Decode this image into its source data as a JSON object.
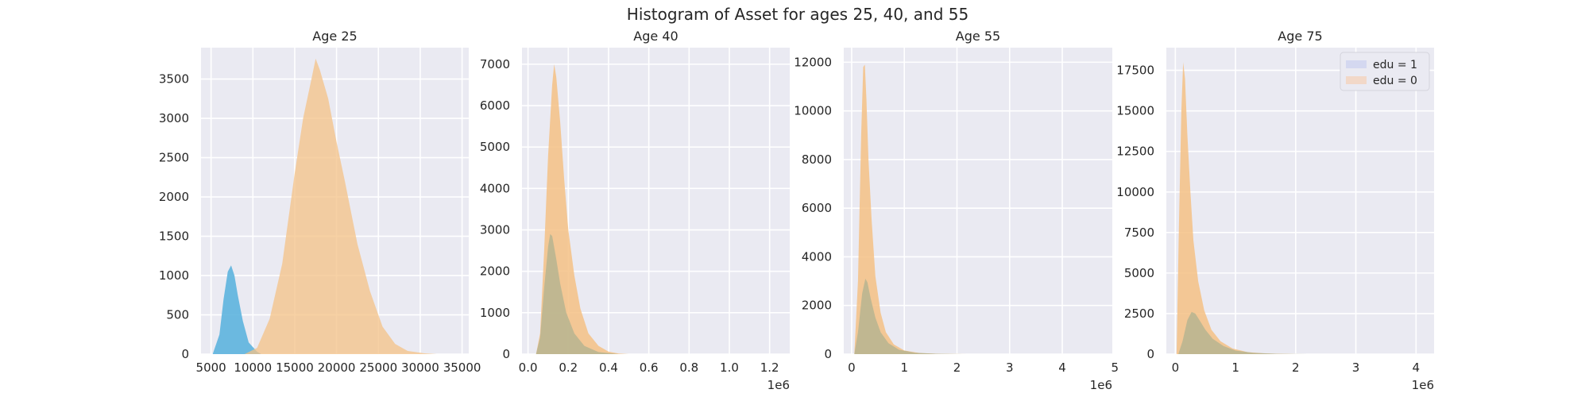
{
  "figure_title": "Histogram of Asset for ages 25, 40, and 55",
  "chart_data": [
    {
      "type": "histogram",
      "title": "Age 25",
      "xlim": [
        3800,
        35800
      ],
      "ylim": [
        0,
        3900
      ],
      "xticks": [
        5000,
        10000,
        15000,
        20000,
        25000,
        30000,
        35000
      ],
      "xtick_labels": [
        "5000",
        "10000",
        "15000",
        "20000",
        "25000",
        "30000",
        "35000"
      ],
      "yticks": [
        0,
        500,
        1000,
        1500,
        2000,
        2500,
        3000,
        3500
      ],
      "ytick_labels": [
        "0",
        "500",
        "1000",
        "1500",
        "2000",
        "2500",
        "3000",
        "3500"
      ],
      "offset_text": "",
      "legend": null,
      "series": [
        {
          "color": "#5db4de",
          "alpha": 0.9,
          "x": [
            5200,
            6000,
            6500,
            7000,
            7400,
            7800,
            8200,
            8800,
            9500,
            10500,
            11000
          ],
          "y": [
            0,
            250,
            700,
            1050,
            1130,
            1000,
            750,
            420,
            150,
            30,
            0
          ]
        },
        {
          "color": "#f4c185",
          "alpha": 0.75,
          "x": [
            9000,
            10500,
            12000,
            13500,
            15000,
            16000,
            17000,
            17500,
            18000,
            19000,
            20000,
            21000,
            22500,
            24000,
            25500,
            27000,
            28500,
            30500,
            32000
          ],
          "y": [
            0,
            80,
            450,
            1150,
            2300,
            3000,
            3500,
            3760,
            3620,
            3250,
            2700,
            2200,
            1400,
            800,
            350,
            130,
            40,
            10,
            0
          ]
        }
      ]
    },
    {
      "type": "histogram",
      "title": "Age 40",
      "xlim": [
        -0.03,
        1.3
      ],
      "ylim": [
        0,
        7400
      ],
      "xticks": [
        0.0,
        0.2,
        0.4,
        0.6,
        0.8,
        1.0,
        1.2
      ],
      "xtick_labels": [
        "0.0",
        "0.2",
        "0.4",
        "0.6",
        "0.8",
        "1.0",
        "1.2"
      ],
      "yticks": [
        0,
        1000,
        2000,
        3000,
        4000,
        5000,
        6000,
        7000
      ],
      "ytick_labels": [
        "0",
        "1000",
        "2000",
        "3000",
        "4000",
        "5000",
        "6000",
        "7000"
      ],
      "offset_text": "1e6",
      "legend": null,
      "series": [
        {
          "color": "#f4c185",
          "alpha": 0.85,
          "x": [
            0.04,
            0.06,
            0.08,
            0.1,
            0.12,
            0.13,
            0.14,
            0.16,
            0.18,
            0.2,
            0.23,
            0.26,
            0.3,
            0.35,
            0.4,
            0.45,
            0.5
          ],
          "y": [
            0,
            500,
            2500,
            4800,
            6500,
            7000,
            6700,
            5600,
            4200,
            3000,
            1900,
            1100,
            500,
            200,
            60,
            15,
            0
          ]
        },
        {
          "color": "#b3b390",
          "alpha": 0.8,
          "x": [
            0.04,
            0.06,
            0.08,
            0.1,
            0.11,
            0.12,
            0.14,
            0.16,
            0.19,
            0.23,
            0.28,
            0.35,
            0.45
          ],
          "y": [
            0,
            400,
            1600,
            2600,
            2900,
            2850,
            2300,
            1700,
            1000,
            500,
            200,
            50,
            0
          ]
        }
      ]
    },
    {
      "type": "histogram",
      "title": "Age 55",
      "xlim": [
        -0.15,
        4.95
      ],
      "ylim": [
        0,
        12600
      ],
      "xticks": [
        0,
        1,
        2,
        3,
        4,
        5
      ],
      "xtick_labels": [
        "0",
        "1",
        "2",
        "3",
        "4",
        "5"
      ],
      "yticks": [
        0,
        2000,
        4000,
        6000,
        8000,
        10000,
        12000
      ],
      "ytick_labels": [
        "0",
        "2000",
        "4000",
        "6000",
        "8000",
        "10000",
        "12000"
      ],
      "offset_text": "1e6",
      "legend": null,
      "series": [
        {
          "color": "#f4c185",
          "alpha": 0.85,
          "x": [
            0.05,
            0.12,
            0.18,
            0.22,
            0.25,
            0.28,
            0.32,
            0.38,
            0.45,
            0.55,
            0.65,
            0.8,
            1.0,
            1.3,
            1.7,
            2.2
          ],
          "y": [
            0,
            3000,
            9000,
            11800,
            11900,
            10500,
            8000,
            5500,
            3200,
            1700,
            900,
            400,
            150,
            40,
            10,
            0
          ]
        },
        {
          "color": "#b3b390",
          "alpha": 0.8,
          "x": [
            0.05,
            0.12,
            0.2,
            0.26,
            0.3,
            0.36,
            0.45,
            0.55,
            0.7,
            0.9,
            1.2,
            1.6,
            2.1
          ],
          "y": [
            0,
            900,
            2500,
            3100,
            2950,
            2300,
            1500,
            900,
            450,
            180,
            60,
            15,
            0
          ]
        }
      ]
    },
    {
      "type": "histogram",
      "title": "Age 75",
      "xlim": [
        -0.15,
        4.3
      ],
      "ylim": [
        0,
        18900
      ],
      "xticks": [
        0,
        1,
        2,
        3,
        4
      ],
      "xtick_labels": [
        "0",
        "1",
        "2",
        "3",
        "4"
      ],
      "yticks": [
        0,
        2500,
        5000,
        7500,
        10000,
        12500,
        15000,
        17500
      ],
      "ytick_labels": [
        "0",
        "2500",
        "5000",
        "7500",
        "10000",
        "12500",
        "15000",
        "17500"
      ],
      "offset_text": "1e6",
      "legend": {
        "placement": "top-right",
        "entries": [
          {
            "label": "edu = 1",
            "color": "#d4d8f0"
          },
          {
            "label": "edu = 0",
            "color": "#f2d8c8"
          }
        ]
      },
      "series": [
        {
          "color": "#f4c185",
          "alpha": 0.85,
          "x": [
            0.02,
            0.06,
            0.1,
            0.13,
            0.16,
            0.2,
            0.25,
            0.3,
            0.38,
            0.48,
            0.6,
            0.75,
            0.95,
            1.2,
            1.5,
            2.0
          ],
          "y": [
            0,
            8000,
            15000,
            18000,
            17000,
            13500,
            10000,
            7000,
            4500,
            2700,
            1500,
            800,
            350,
            120,
            40,
            0
          ]
        },
        {
          "color": "#b3b390",
          "alpha": 0.8,
          "x": [
            0.05,
            0.12,
            0.2,
            0.27,
            0.33,
            0.4,
            0.5,
            0.62,
            0.8,
            1.0,
            1.3,
            1.7,
            2.2
          ],
          "y": [
            0,
            800,
            2100,
            2600,
            2500,
            2100,
            1500,
            950,
            500,
            220,
            80,
            20,
            0
          ]
        }
      ]
    }
  ]
}
